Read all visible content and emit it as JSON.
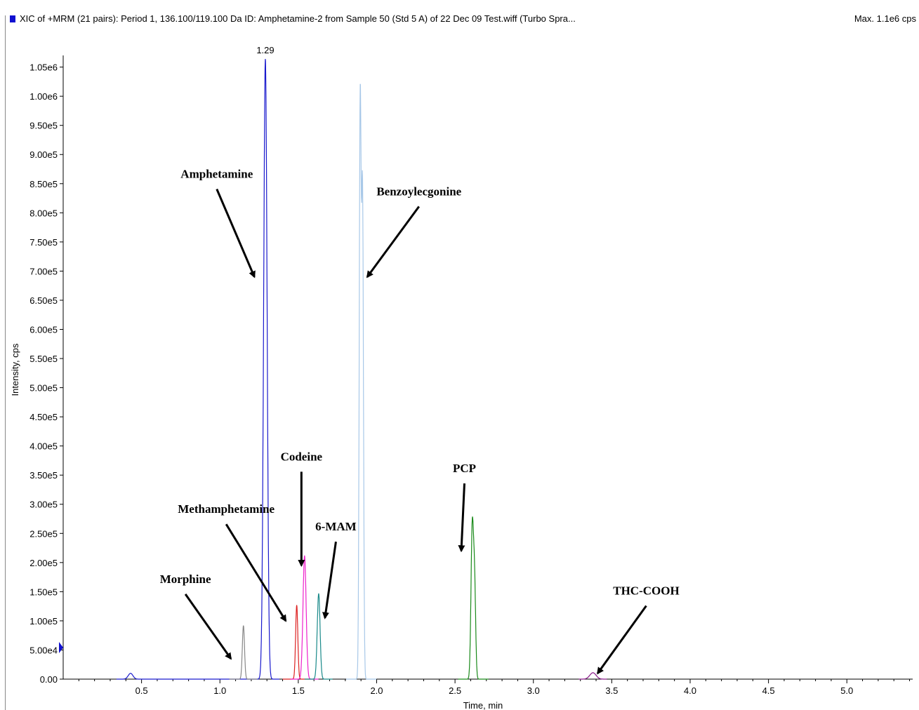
{
  "header": {
    "title": "XIC of +MRM (21 pairs): Period 1, 136.100/119.100 Da ID: Amphetamine-2 from Sample 50 (Std 5 A) of 22 Dec 09 Test.wiff (Turbo Spra...",
    "max": "Max. 1.1e6 cps",
    "swatch_color": "#1010d0"
  },
  "chart_data": {
    "type": "line",
    "xlabel": "Time, min",
    "ylabel": "Intensity, cps",
    "xlim": [
      0.0,
      5.42
    ],
    "ylim": [
      0,
      1070000.0
    ],
    "x_ticks": [
      0.5,
      1.0,
      1.5,
      2.0,
      2.5,
      3.0,
      3.5,
      4.0,
      4.5,
      5.0
    ],
    "x_tick_labels": [
      "0.5",
      "1.0",
      "1.5",
      "2.0",
      "2.5",
      "3.0",
      "3.5",
      "4.0",
      "4.5",
      "5.0"
    ],
    "y_ticks": [
      0,
      50000,
      100000,
      150000,
      200000,
      250000,
      300000,
      350000,
      400000,
      450000,
      500000,
      550000,
      600000,
      650000,
      700000,
      750000,
      800000,
      850000,
      900000,
      950000,
      1000000,
      1050000
    ],
    "y_tick_labels": [
      "0.00",
      "5.00e4",
      "1.00e5",
      "1.50e5",
      "2.00e5",
      "2.50e5",
      "3.00e5",
      "3.50e5",
      "4.00e5",
      "4.50e5",
      "5.00e5",
      "5.50e5",
      "6.00e5",
      "6.50e5",
      "7.00e5",
      "7.50e5",
      "8.00e5",
      "8.50e5",
      "9.00e5",
      "9.50e5",
      "1.00e6",
      "1.05e6"
    ],
    "peak_label": {
      "x": 1.29,
      "text": "1.29"
    },
    "series": [
      {
        "color": "#1a1acd",
        "peaks": [
          {
            "rt": 1.29,
            "height": 1065000,
            "sigma": 0.011
          },
          {
            "rt": 0.43,
            "height": 10000,
            "sigma": 0.015
          }
        ]
      },
      {
        "color": "#888888",
        "peaks": [
          {
            "rt": 1.15,
            "height": 92000,
            "sigma": 0.007
          }
        ]
      },
      {
        "color": "#dd2222",
        "peaks": [
          {
            "rt": 1.49,
            "height": 127000,
            "sigma": 0.007
          }
        ]
      },
      {
        "color": "#ee22cc",
        "peaks": [
          {
            "rt": 1.54,
            "height": 212000,
            "sigma": 0.01
          }
        ]
      },
      {
        "color": "#1a8a8a",
        "peaks": [
          {
            "rt": 1.63,
            "height": 147000,
            "sigma": 0.009
          }
        ]
      },
      {
        "color": "#a8c8e8",
        "peaks": [
          {
            "rt": 1.895,
            "height": 985000,
            "sigma": 0.006
          },
          {
            "rt": 1.91,
            "height": 820000,
            "sigma": 0.006
          }
        ]
      },
      {
        "color": "#1a8a1a",
        "peaks": [
          {
            "rt": 2.61,
            "height": 260000,
            "sigma": 0.008
          },
          {
            "rt": 2.625,
            "height": 150000,
            "sigma": 0.007
          }
        ]
      },
      {
        "color": "#8a1a8a",
        "peaks": [
          {
            "rt": 3.38,
            "height": 11000,
            "sigma": 0.02
          }
        ]
      }
    ],
    "annotations": [
      {
        "text": "Amphetamine",
        "x": 0.98,
        "y": 860000,
        "ax": 1.22,
        "ay": 690000
      },
      {
        "text": "Benzoylecgonine",
        "x": 2.27,
        "y": 830000,
        "ax": 1.94,
        "ay": 690000
      },
      {
        "text": "Codeine",
        "x": 1.52,
        "y": 375000,
        "ax": 1.52,
        "ay": 195000
      },
      {
        "text": "6-MAM",
        "x": 1.74,
        "y": 255000,
        "ax": 1.67,
        "ay": 105000
      },
      {
        "text": "PCP",
        "x": 2.56,
        "y": 355000,
        "ax": 2.54,
        "ay": 220000
      },
      {
        "text": "Methamphetamine",
        "x": 1.04,
        "y": 285000,
        "ax": 1.42,
        "ay": 100000
      },
      {
        "text": "Morphine",
        "x": 0.78,
        "y": 165000,
        "ax": 1.07,
        "ay": 35000
      },
      {
        "text": "THC-COOH",
        "x": 3.72,
        "y": 145000,
        "ax": 3.41,
        "ay": 10000
      }
    ]
  }
}
